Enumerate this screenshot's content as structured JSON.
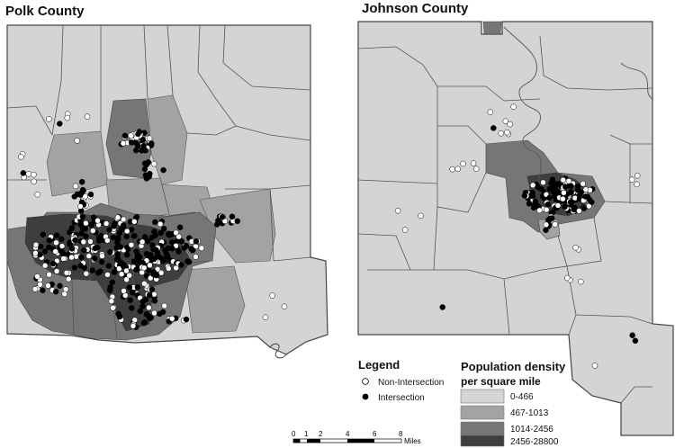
{
  "maps": {
    "polk": {
      "title": "Polk County"
    },
    "johnson": {
      "title": "Johnson County"
    }
  },
  "legend": {
    "title": "Legend",
    "items": [
      {
        "label": "Non-Intersection",
        "symbol": "open-circle"
      },
      {
        "label": "Intersection",
        "symbol": "filled-circle"
      }
    ]
  },
  "density": {
    "title_line1": "Population density",
    "title_line2": "per square mile",
    "classes": [
      {
        "label": "0-466",
        "color": "#d4d4d4"
      },
      {
        "label": "467-1013",
        "color": "#a3a3a3"
      },
      {
        "label": "1014-2456",
        "color": "#767676"
      },
      {
        "label": "2456-28800",
        "color": "#3e3e3e"
      }
    ]
  },
  "scale": {
    "ticks": [
      "0",
      "1",
      "2",
      "4",
      "6",
      "8"
    ],
    "unit": "Miles"
  },
  "colors": {
    "intersection": "#000000",
    "non_intersection": "#ffffff"
  }
}
